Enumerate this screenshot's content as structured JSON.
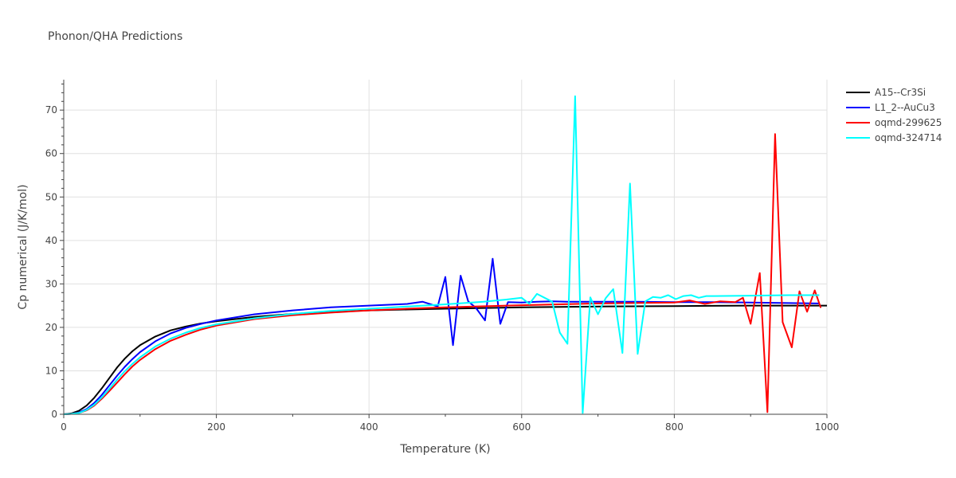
{
  "chart_data": {
    "type": "line",
    "title": "Phonon/QHA Predictions",
    "xlabel": "Temperature (K)",
    "ylabel": "Cp numerical (J/K/mol)",
    "xlim": [
      0,
      1000
    ],
    "ylim": [
      0,
      77
    ],
    "xticks": [
      0,
      200,
      400,
      600,
      800,
      1000
    ],
    "yticks": [
      0,
      10,
      20,
      30,
      40,
      50,
      60,
      70
    ],
    "grid": true,
    "legend_position": "top-right",
    "series": [
      {
        "name": "A15--Cr3Si",
        "color": "#000000",
        "x": [
          0,
          10,
          20,
          30,
          40,
          50,
          60,
          70,
          80,
          90,
          100,
          120,
          140,
          160,
          180,
          200,
          250,
          300,
          350,
          400,
          450,
          500,
          600,
          700,
          800,
          900,
          1000
        ],
        "y": [
          0,
          0.2,
          0.8,
          2.0,
          3.8,
          6.0,
          8.4,
          10.8,
          12.8,
          14.5,
          15.9,
          17.9,
          19.3,
          20.2,
          20.9,
          21.4,
          22.4,
          23.1,
          23.6,
          23.9,
          24.1,
          24.3,
          24.6,
          24.8,
          24.9,
          25.0,
          25.0
        ]
      },
      {
        "name": "L1_2--AuCu3",
        "color": "#0000ff",
        "x": [
          0,
          10,
          20,
          30,
          40,
          50,
          60,
          70,
          80,
          90,
          100,
          120,
          140,
          160,
          180,
          200,
          250,
          300,
          350,
          400,
          450,
          470,
          490,
          500,
          510,
          520,
          530,
          540,
          552,
          562,
          572,
          582,
          600,
          620,
          640,
          660,
          680,
          700,
          750,
          800,
          850,
          900,
          950,
          990
        ],
        "y": [
          0,
          0.1,
          0.4,
          1.2,
          2.6,
          4.5,
          6.7,
          8.9,
          10.9,
          12.7,
          14.3,
          16.8,
          18.6,
          19.9,
          20.8,
          21.6,
          23.0,
          23.9,
          24.6,
          25.0,
          25.4,
          25.9,
          24.8,
          31.6,
          15.9,
          31.9,
          26.0,
          24.5,
          21.6,
          35.8,
          20.8,
          25.8,
          25.7,
          25.9,
          26.0,
          25.9,
          25.9,
          25.9,
          25.9,
          25.8,
          25.8,
          25.7,
          25.6,
          25.5
        ]
      },
      {
        "name": "oqmd-299625",
        "color": "#ff0000",
        "x": [
          0,
          10,
          20,
          30,
          40,
          50,
          60,
          70,
          80,
          90,
          100,
          120,
          140,
          160,
          180,
          200,
          250,
          300,
          350,
          400,
          450,
          500,
          600,
          700,
          800,
          820,
          840,
          860,
          880,
          890,
          900,
          912,
          922,
          932,
          942,
          954,
          964,
          974,
          984,
          992
        ],
        "y": [
          0,
          0.1,
          0.3,
          0.9,
          2.0,
          3.6,
          5.4,
          7.3,
          9.2,
          11.0,
          12.5,
          15.0,
          16.9,
          18.3,
          19.5,
          20.4,
          21.9,
          22.8,
          23.4,
          23.9,
          24.3,
          24.6,
          25.1,
          25.5,
          25.7,
          26.2,
          25.4,
          26.0,
          25.8,
          26.8,
          20.8,
          32.5,
          0.5,
          64.5,
          21.2,
          15.4,
          28.3,
          23.6,
          28.5,
          24.5
        ]
      },
      {
        "name": "oqmd-324714",
        "color": "#00ffff",
        "x": [
          0,
          10,
          20,
          30,
          40,
          50,
          60,
          70,
          80,
          90,
          100,
          120,
          140,
          160,
          180,
          200,
          250,
          300,
          350,
          400,
          450,
          500,
          550,
          580,
          600,
          610,
          620,
          640,
          650,
          660,
          670,
          680,
          690,
          700,
          710,
          720,
          732,
          742,
          752,
          762,
          772,
          782,
          792,
          802,
          812,
          822,
          832,
          842,
          852,
          900,
          950,
          990
        ],
        "y": [
          0,
          0.1,
          0.3,
          1.0,
          2.2,
          3.9,
          5.9,
          8.0,
          9.9,
          11.6,
          13.1,
          15.6,
          17.4,
          18.8,
          19.9,
          20.7,
          22.1,
          23.1,
          23.8,
          24.3,
          24.8,
          25.3,
          25.9,
          26.4,
          26.8,
          25.4,
          27.7,
          25.9,
          18.8,
          16.2,
          73.2,
          0.3,
          26.9,
          23.0,
          26.7,
          28.8,
          14.1,
          53.1,
          13.9,
          26.0,
          27.0,
          26.8,
          27.4,
          26.5,
          27.2,
          27.4,
          26.8,
          27.2,
          27.2,
          27.3,
          27.4,
          27.4
        ]
      }
    ]
  }
}
